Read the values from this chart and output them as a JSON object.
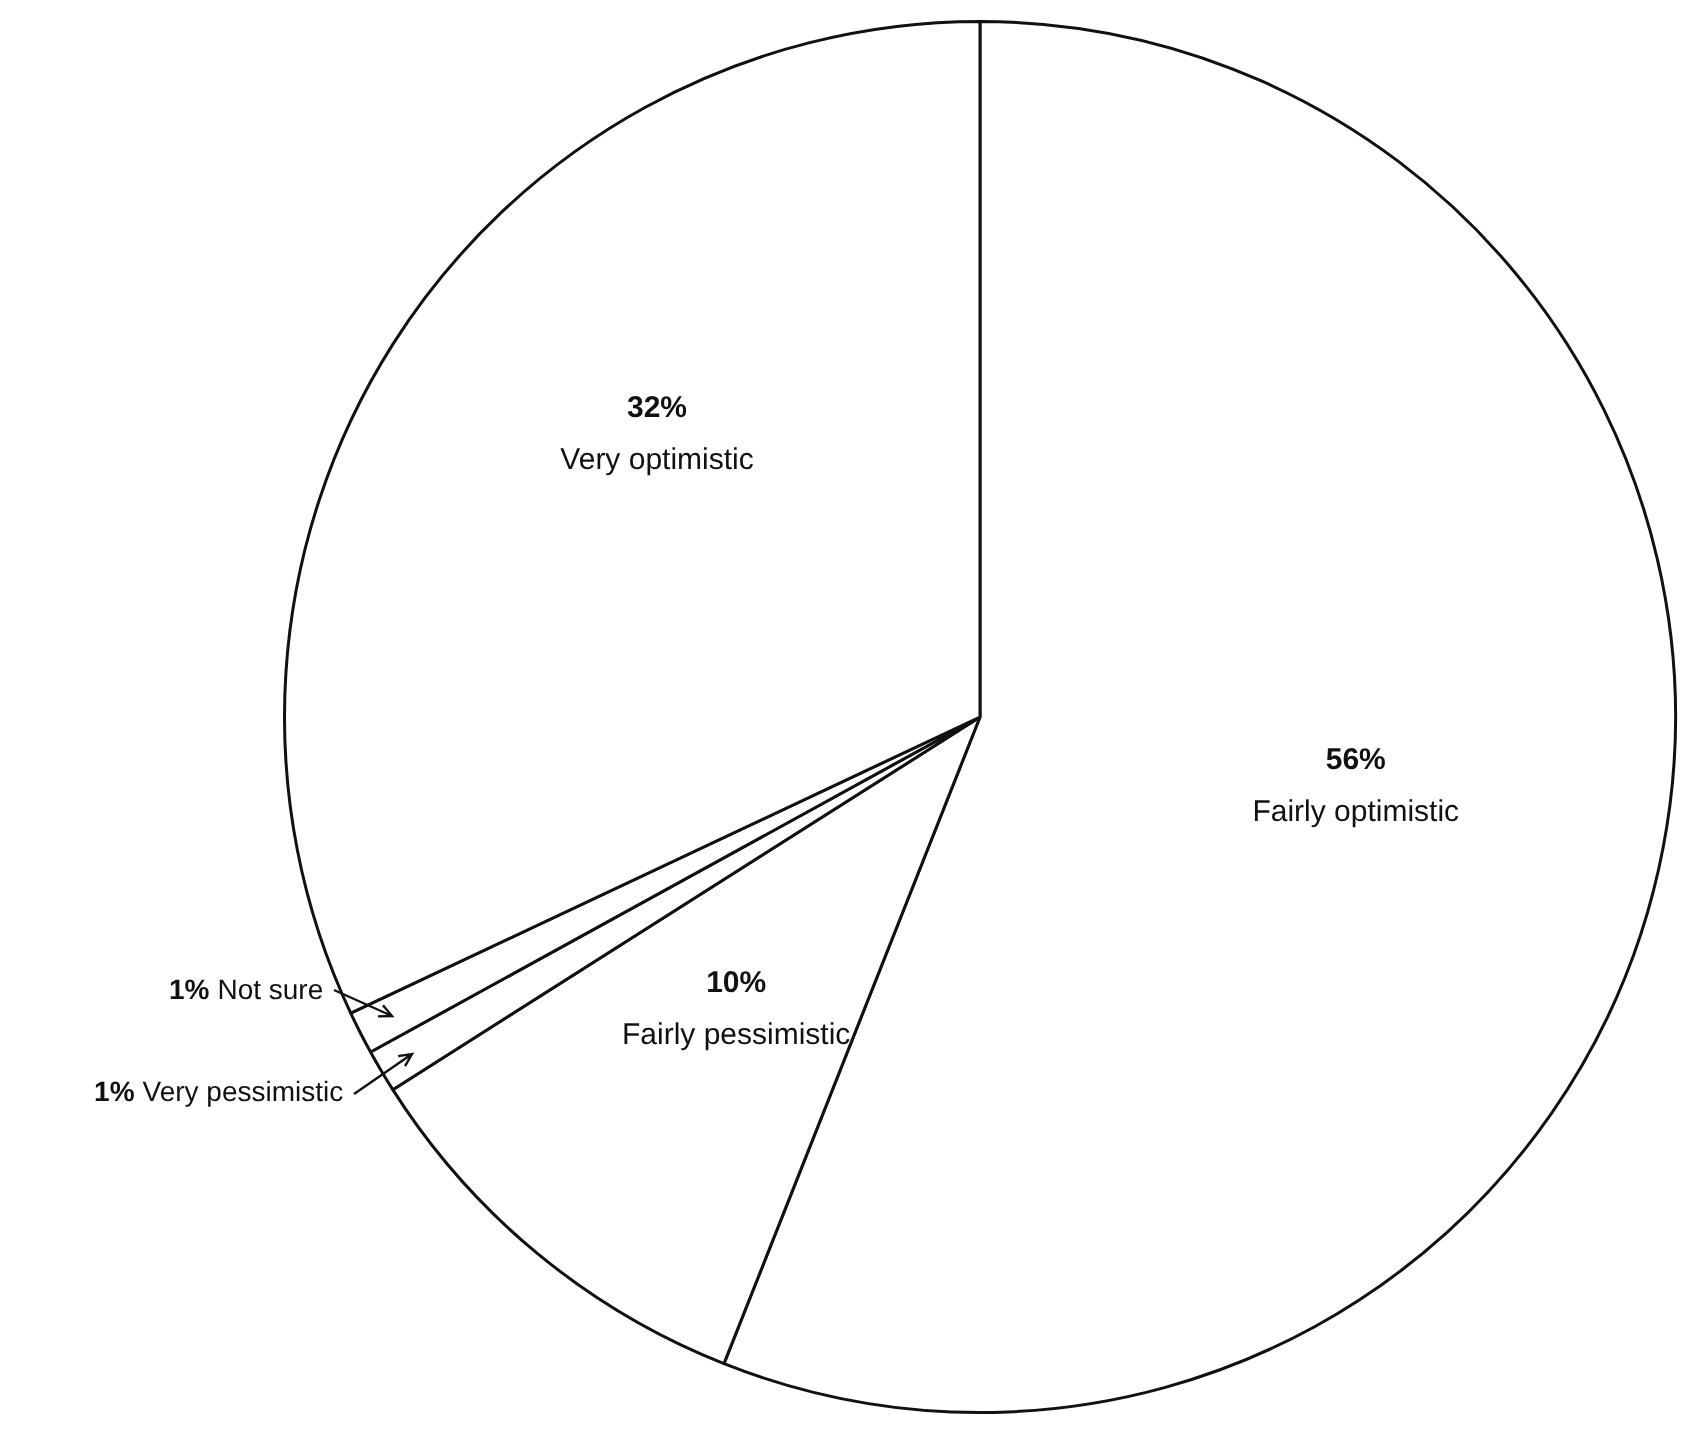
{
  "chart_data": {
    "type": "pie",
    "categories": [
      "Fairly optimistic",
      "Fairly pessimistic",
      "Very pessimistic",
      "Not sure",
      "Very optimistic"
    ],
    "values": [
      56,
      10,
      1,
      1,
      32
    ],
    "colors": [
      "#ffffff",
      "#ffffff",
      "#ffffff",
      "#ffffff",
      "#ffffff"
    ],
    "value_labels": [
      "56%",
      "10%",
      "1%",
      "1%",
      "32%"
    ],
    "legend": false
  }
}
